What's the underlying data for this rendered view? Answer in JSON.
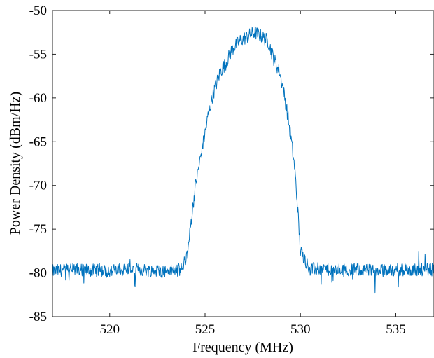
{
  "chart_data": {
    "type": "line",
    "title": "",
    "xlabel": "Frequency (MHz)",
    "ylabel": "Power Density (dBm/Hz)",
    "xlim": [
      517,
      537
    ],
    "ylim": [
      -85,
      -50
    ],
    "xticks": [
      520,
      525,
      530,
      535
    ],
    "yticks": [
      -85,
      -80,
      -75,
      -70,
      -65,
      -60,
      -55,
      -50
    ],
    "grid": false,
    "legend": "none",
    "line_color": "#0072BD",
    "series": [
      {
        "x": [
          517,
          518,
          519,
          520,
          521,
          522,
          523,
          523.8,
          524.1,
          524.3,
          524.5,
          524.7,
          525.0,
          525.2,
          525.5,
          525.8,
          526.1,
          526.4,
          526.8,
          527.2,
          527.6,
          528.0,
          528.3,
          528.6,
          528.9,
          529.1,
          529.3,
          529.5,
          529.7,
          529.85,
          530.0,
          530.5,
          531,
          532,
          533,
          534,
          535,
          536,
          537
        ],
        "y": [
          -79.8,
          -79.6,
          -79.7,
          -79.8,
          -79.5,
          -79.7,
          -79.8,
          -79.6,
          -77.5,
          -73.5,
          -70.0,
          -67.5,
          -64.0,
          -61.5,
          -59.0,
          -57.0,
          -56.0,
          -54.5,
          -53.5,
          -53.0,
          -52.5,
          -53.0,
          -53.5,
          -55.5,
          -57.0,
          -59.0,
          -61.5,
          -64.5,
          -68.0,
          -72.5,
          -77.5,
          -79.6,
          -79.5,
          -79.7,
          -79.6,
          -79.8,
          -79.6,
          -79.7,
          -79.6
        ]
      }
    ]
  }
}
